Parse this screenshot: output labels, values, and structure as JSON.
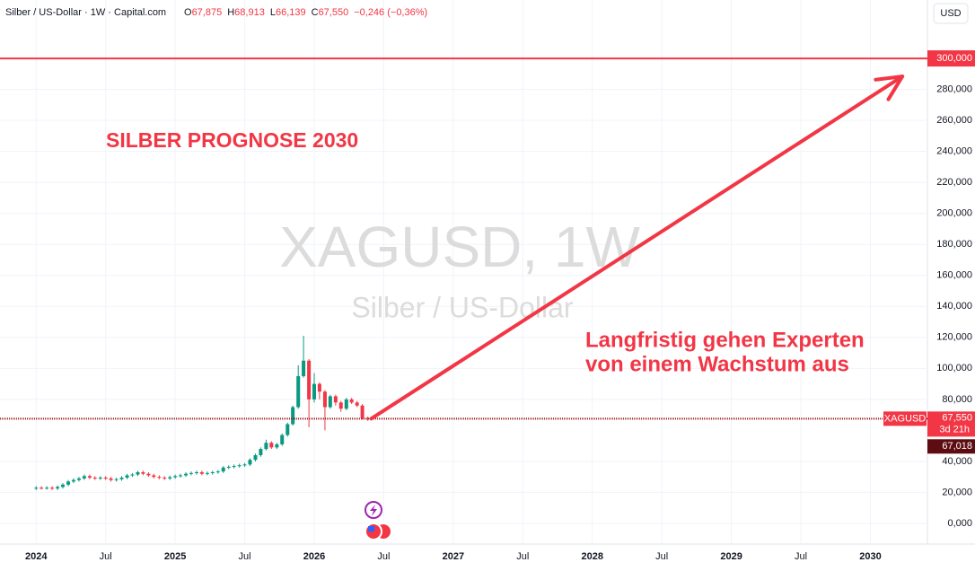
{
  "header": {
    "symbol": "Silber / US-Dollar · 1W · Capital.com",
    "ohlc": [
      {
        "label": "O",
        "value": "67,875"
      },
      {
        "label": "H",
        "value": "68,913"
      },
      {
        "label": "L",
        "value": "66,139"
      },
      {
        "label": "C",
        "value": "67,550"
      }
    ],
    "change": "−0,246 (−0,36%)",
    "currency": "USD"
  },
  "chart_data": {
    "type": "candlestick",
    "title": "SILBER PROGNOSE 2030",
    "annotation": [
      "Langfristig gehen Experten",
      "von einem Wachstum aus"
    ],
    "watermark": {
      "symbol": "XAGUSD, 1W",
      "description": "Silber / US-Dollar"
    },
    "up_color": "#089981",
    "down_color": "#f23645",
    "grid": true,
    "x": [
      2024,
      2024.038,
      2024.077,
      2024.115,
      2024.154,
      2024.192,
      2024.231,
      2024.269,
      2024.308,
      2024.346,
      2024.385,
      2024.423,
      2024.462,
      2024.5,
      2024.538,
      2024.577,
      2024.615,
      2024.654,
      2024.692,
      2024.731,
      2024.769,
      2024.808,
      2024.846,
      2024.885,
      2024.923,
      2024.962,
      2025,
      2025.038,
      2025.077,
      2025.115,
      2025.154,
      2025.192,
      2025.231,
      2025.269,
      2025.308,
      2025.346,
      2025.385,
      2025.423,
      2025.462,
      2025.5,
      2025.538,
      2025.577,
      2025.615,
      2025.654,
      2025.692,
      2025.731,
      2025.769,
      2025.808,
      2025.846,
      2025.885,
      2025.923,
      2025.962,
      2026,
      2026.038,
      2026.077,
      2026.115,
      2026.154,
      2026.192,
      2026.231,
      2026.269,
      2026.308,
      2026.346,
      2026.385
    ],
    "open": [
      22500,
      23000,
      22800,
      23000,
      22500,
      23500,
      25000,
      27000,
      28000,
      29000,
      30500,
      29500,
      29000,
      29500,
      29000,
      28000,
      28500,
      29500,
      31000,
      31500,
      33000,
      32000,
      31000,
      30000,
      29500,
      29000,
      29800,
      30500,
      31000,
      32000,
      32500,
      33000,
      32000,
      32500,
      33000,
      33500,
      36000,
      36500,
      37000,
      37500,
      38000,
      41000,
      44000,
      48000,
      52000,
      49000,
      51000,
      57000,
      64000,
      75000,
      95000,
      105000,
      80000,
      90000,
      85000,
      75000,
      82000,
      78000,
      74000,
      80000,
      78000,
      76000,
      67875
    ],
    "high": [
      24000,
      24000,
      24000,
      24000,
      24500,
      26000,
      28000,
      29000,
      30000,
      31500,
      31500,
      30500,
      30500,
      30500,
      30000,
      29500,
      30500,
      32000,
      32500,
      34000,
      34000,
      33000,
      32000,
      31000,
      30500,
      30800,
      31500,
      32000,
      33000,
      33500,
      34000,
      34000,
      33500,
      34000,
      34500,
      37000,
      37500,
      38000,
      38500,
      39000,
      42000,
      45000,
      49000,
      54000,
      53000,
      52000,
      58000,
      65000,
      76000,
      102000,
      121000,
      106000,
      97000,
      91000,
      86000,
      83000,
      83000,
      79000,
      81000,
      81000,
      79000,
      77000,
      68913
    ],
    "low": [
      21500,
      21800,
      21800,
      21500,
      21500,
      22500,
      24000,
      26000,
      27000,
      28000,
      28500,
      28000,
      28000,
      28000,
      27000,
      27000,
      27500,
      28500,
      30000,
      30500,
      31000,
      30000,
      29000,
      28500,
      28000,
      28000,
      28800,
      29500,
      30000,
      31000,
      31500,
      31000,
      31000,
      31500,
      32000,
      32500,
      35000,
      35500,
      36000,
      36500,
      37000,
      40000,
      43000,
      47000,
      48000,
      48000,
      50000,
      56000,
      63000,
      74000,
      94000,
      62000,
      78000,
      80000,
      60000,
      74000,
      76000,
      72000,
      73000,
      77000,
      75000,
      67000,
      66139
    ],
    "close": [
      23000,
      22800,
      23000,
      22500,
      23500,
      25000,
      27000,
      28000,
      29000,
      30500,
      29500,
      29000,
      29500,
      29000,
      28000,
      28500,
      29500,
      31000,
      31500,
      33000,
      32000,
      31000,
      30000,
      29500,
      29000,
      29800,
      30500,
      31000,
      32000,
      32500,
      33000,
      32000,
      32500,
      33000,
      33500,
      36000,
      36500,
      37000,
      37500,
      38000,
      41000,
      44000,
      48000,
      52000,
      49000,
      51000,
      57000,
      64000,
      75000,
      95000,
      105000,
      80000,
      90000,
      85000,
      75000,
      82000,
      78000,
      74000,
      80000,
      78000,
      76000,
      68000,
      67550
    ],
    "xlim": [
      2023.74,
      2030.41
    ],
    "xticks": [
      {
        "value": 2024,
        "label": "2024"
      },
      {
        "value": 2024.5,
        "label": "Jul"
      },
      {
        "value": 2025,
        "label": "2025"
      },
      {
        "value": 2025.5,
        "label": "Jul"
      },
      {
        "value": 2026,
        "label": "2026"
      },
      {
        "value": 2026.5,
        "label": "Jul"
      },
      {
        "value": 2027,
        "label": "2027"
      },
      {
        "value": 2027.5,
        "label": "Jul"
      },
      {
        "value": 2028,
        "label": "2028"
      },
      {
        "value": 2028.5,
        "label": "Jul"
      },
      {
        "value": 2029,
        "label": "2029"
      },
      {
        "value": 2029.5,
        "label": "Jul"
      },
      {
        "value": 2030,
        "label": "2030"
      }
    ],
    "ylim": [
      -13350,
      337700
    ],
    "yticks": [
      {
        "value": 0,
        "label": "0,000"
      },
      {
        "value": 20000,
        "label": "20,000"
      },
      {
        "value": 40000,
        "label": "40,000"
      },
      {
        "value": 80000,
        "label": "80,000"
      },
      {
        "value": 100000,
        "label": "100,000"
      },
      {
        "value": 120000,
        "label": "120,000"
      },
      {
        "value": 140000,
        "label": "140,000"
      },
      {
        "value": 160000,
        "label": "160,000"
      },
      {
        "value": 180000,
        "label": "180,000"
      },
      {
        "value": 200000,
        "label": "200,000"
      },
      {
        "value": 220000,
        "label": "220,000"
      },
      {
        "value": 240000,
        "label": "240,000"
      },
      {
        "value": 260000,
        "label": "260,000"
      },
      {
        "value": 280000,
        "label": "280,000"
      }
    ],
    "hline": {
      "value": 300000,
      "label": "300,000",
      "color": "#f23645"
    },
    "last_price": {
      "name": "XAGUSD",
      "value": 67550,
      "label": "67,550",
      "countdown": "3d 21h",
      "color": "#9b1c1c"
    },
    "prev_close": {
      "value": 67018,
      "label": "67,018"
    },
    "arrow": {
      "x": [
        2026.41,
        2030.23
      ],
      "y": [
        67550,
        288400
      ],
      "color": "#f23645"
    }
  }
}
